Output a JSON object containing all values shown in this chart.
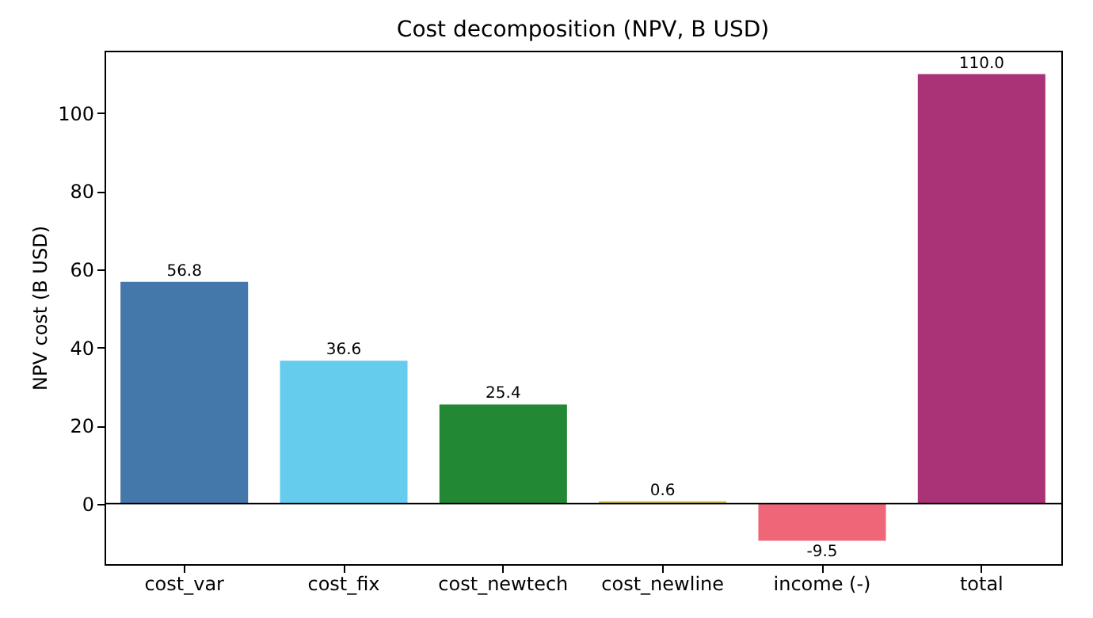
{
  "chart_data": {
    "type": "bar",
    "title": "Cost decomposition (NPV, B USD)",
    "ylabel": "NPV cost (B USD)",
    "categories": [
      "cost_var",
      "cost_fix",
      "cost_newtech",
      "cost_newline",
      "income (-)",
      "total"
    ],
    "values": [
      56.8,
      36.6,
      25.4,
      0.6,
      -9.5,
      110.0
    ],
    "colors": [
      "#4477aa",
      "#66ccee",
      "#228833",
      "#ccbb44",
      "#ee6677",
      "#aa3377"
    ],
    "value_labels": [
      "56.8",
      "36.6",
      "25.4",
      "0.6",
      "-9.5",
      "110.0"
    ],
    "ylim": [
      -15.5,
      116
    ],
    "yticks": [
      0,
      20,
      40,
      60,
      80,
      100
    ],
    "grid": false,
    "ref_lines": [
      {
        "axis": "y",
        "value": 0,
        "color": "#000000"
      }
    ]
  }
}
